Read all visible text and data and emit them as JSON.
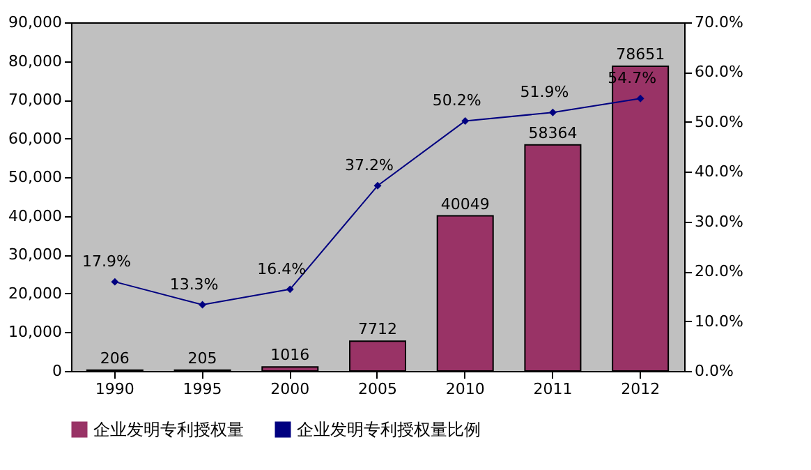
{
  "chart_data": {
    "type": "bar",
    "categories": [
      "1990",
      "1995",
      "2000",
      "2005",
      "2010",
      "2011",
      "2012"
    ],
    "series": [
      {
        "name": "企业发明专利授权量",
        "color": "#993366",
        "values": [
          206,
          205,
          1016,
          7712,
          40049,
          58364,
          78651
        ],
        "value_labels": [
          "206",
          "205",
          "1016",
          "7712",
          "40049",
          "58364",
          "78651"
        ]
      },
      {
        "name": "企业发明专利授权量比例",
        "type": "line",
        "axis": "y2",
        "color": "#000080",
        "marker": "diamond",
        "values": [
          17.9,
          13.3,
          16.4,
          37.2,
          50.2,
          51.9,
          54.7
        ],
        "value_labels": [
          "17.9%",
          "13.3%",
          "16.4%",
          "37.2%",
          "50.2%",
          "51.9%",
          "54.7%"
        ]
      }
    ],
    "ylim": [
      0,
      90000
    ],
    "yticks": [
      0,
      {
        "value": 10000,
        "label": "10,000"
      },
      {
        "value": 20000,
        "label": "20,000"
      },
      {
        "value": 30000,
        "label": "30,000"
      },
      {
        "value": 40000,
        "label": "40,000"
      },
      {
        "value": 50000,
        "label": "50,000"
      },
      {
        "value": 60000,
        "label": "60,000"
      },
      {
        "value": 70000,
        "label": "70,000"
      },
      {
        "value": 80000,
        "label": "80,000"
      },
      {
        "value": 90000,
        "label": "90,000"
      }
    ],
    "y2lim": [
      0,
      70
    ],
    "y2ticks": [
      {
        "value": 0,
        "label": "0.0%"
      },
      {
        "value": 10,
        "label": "10.0%"
      },
      {
        "value": 20,
        "label": "20.0%"
      },
      {
        "value": 30,
        "label": "30.0%"
      },
      {
        "value": 40,
        "label": "40.0%"
      },
      {
        "value": 50,
        "label": "50.0%"
      },
      {
        "value": 60,
        "label": "60.0%"
      },
      {
        "value": 70,
        "label": "70.0%"
      }
    ],
    "grid": false,
    "legend": "bottom"
  }
}
